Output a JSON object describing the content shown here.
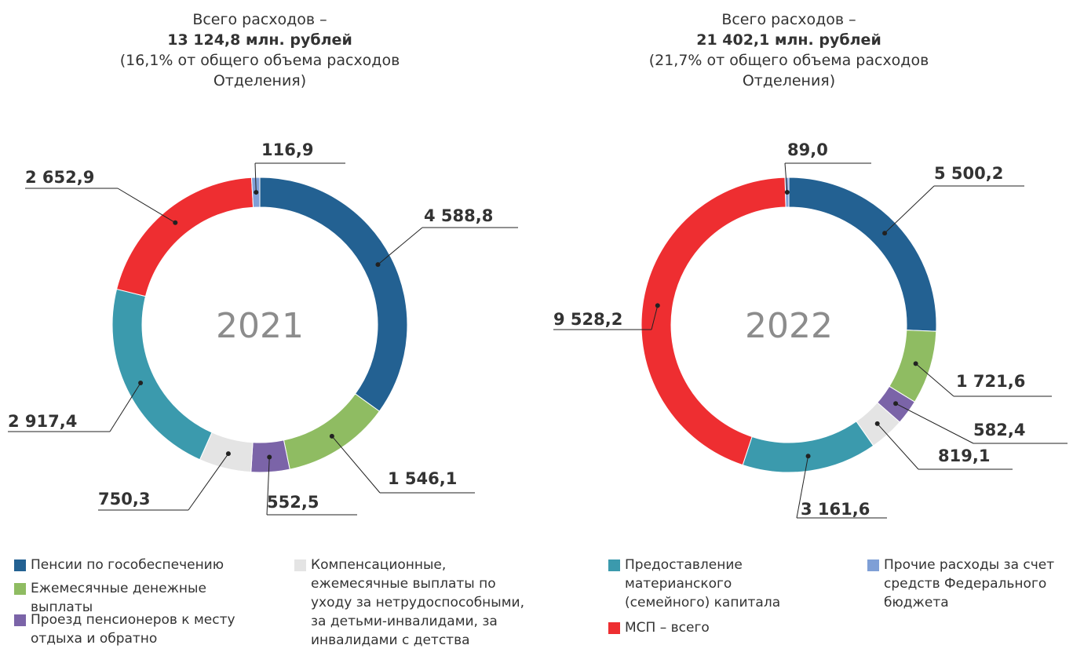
{
  "legend": [
    {
      "name": "Пенсии по гособеспечению",
      "color": "#236192"
    },
    {
      "name": "Ежемесячные денежные выплаты",
      "color": "#8fbc62"
    },
    {
      "name": "Проезд пенсионеров к месту отдыха и обратно",
      "color": "#7b64a8"
    },
    {
      "name": "Компенсационные, ежемесячные выплаты по уходу за нетрудоспособными, за детьми-инвалидами, за инвалидами с детства",
      "color": "#e4e4e4"
    },
    {
      "name": "Предоставление материанского (семейного) капитала",
      "color": "#3b9aad"
    },
    {
      "name": "МСП – всего",
      "color": "#ee2e31"
    },
    {
      "name": "Прочие расходы за счет средств Федерального бюджета",
      "color": "#7f9fd6"
    }
  ],
  "chart_data": [
    {
      "type": "pie",
      "title_lines": [
        "Всего расходов –",
        "13 124,8 млн. рублей",
        "(16,1% от общего объема расходов",
        "Отделения)"
      ],
      "center_label": "2021",
      "values": [
        4588.8,
        1546.1,
        552.5,
        750.3,
        2917.4,
        2652.9,
        116.9
      ],
      "value_labels": [
        "4 588,8",
        "1 546,1",
        "552,5",
        "750,3",
        "2 917,4",
        "2 652,9",
        "116,9"
      ]
    },
    {
      "type": "pie",
      "title_lines": [
        "Всего расходов –",
        "21 402,1 млн. рублей",
        "(21,7% от общего объема расходов",
        "Отделения)"
      ],
      "center_label": "2022",
      "values": [
        5500.2,
        1721.6,
        582.4,
        819.1,
        3161.6,
        9528.2,
        89.0
      ],
      "value_labels": [
        "5 500,2",
        "1 721,6",
        "582,4",
        "819,1",
        "3 161,6",
        "9 528,2",
        "89,0"
      ]
    }
  ]
}
